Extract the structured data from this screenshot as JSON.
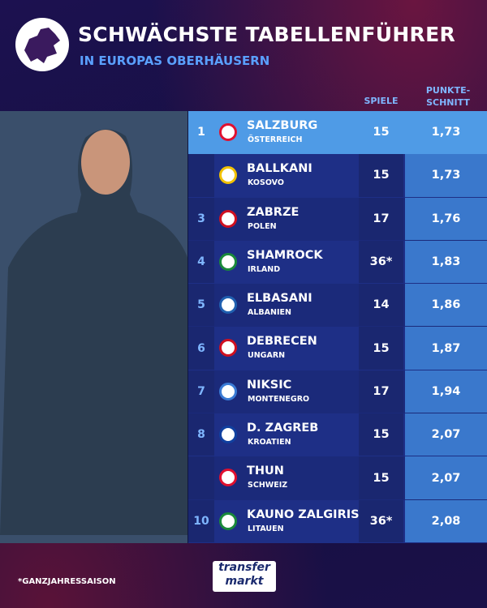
{
  "header": {
    "title": "SCHWÄCHSTE TABELLENFÜHRER",
    "subtitle": "IN EUROPAS OBERHÄUSERN"
  },
  "table": {
    "columns": [
      "SPIELE",
      "PUNKTE-SCHNITT"
    ],
    "rows": [
      {
        "rank": "1",
        "club": "SALZBURG",
        "country": "ÖSTERREICH",
        "games": "15",
        "average": "1,73"
      },
      {
        "club": "BALLKANI",
        "country": "KOSOVO",
        "games": "15",
        "average": "1,73"
      },
      {
        "rank": "3",
        "club": "ZABRZE",
        "country": "POLEN",
        "games": "17",
        "average": "1,76"
      },
      {
        "rank": "4",
        "club": "SHAMROCK",
        "country": "IRLAND",
        "games": "36*",
        "average": "1,83"
      },
      {
        "rank": "5",
        "club": "ELBASANI",
        "country": "ALBANIEN",
        "games": "14",
        "average": "1,86"
      },
      {
        "rank": "6",
        "club": "DEBRECEN",
        "country": "UNGARN",
        "games": "15",
        "average": "1,87"
      },
      {
        "rank": "7",
        "club": "NIKSIC",
        "country": "MONTENEGRO",
        "games": "17",
        "average": "1,94"
      },
      {
        "rank": "8",
        "club": "D. ZAGREB",
        "country": "KROATIEN",
        "games": "15",
        "average": "2,07"
      },
      {
        "club": "THUN",
        "country": "SCHWEIZ",
        "games": "15",
        "average": "2,07"
      },
      {
        "rank": "10",
        "club": "KAUNO ZALGIRIS",
        "country": "LITAUEN",
        "games": "36*",
        "average": "2,08"
      }
    ]
  },
  "footer": {
    "note": "*GANZJAHRESSAISON",
    "brand_top": "transfer",
    "brand_bottom": "markt"
  }
}
